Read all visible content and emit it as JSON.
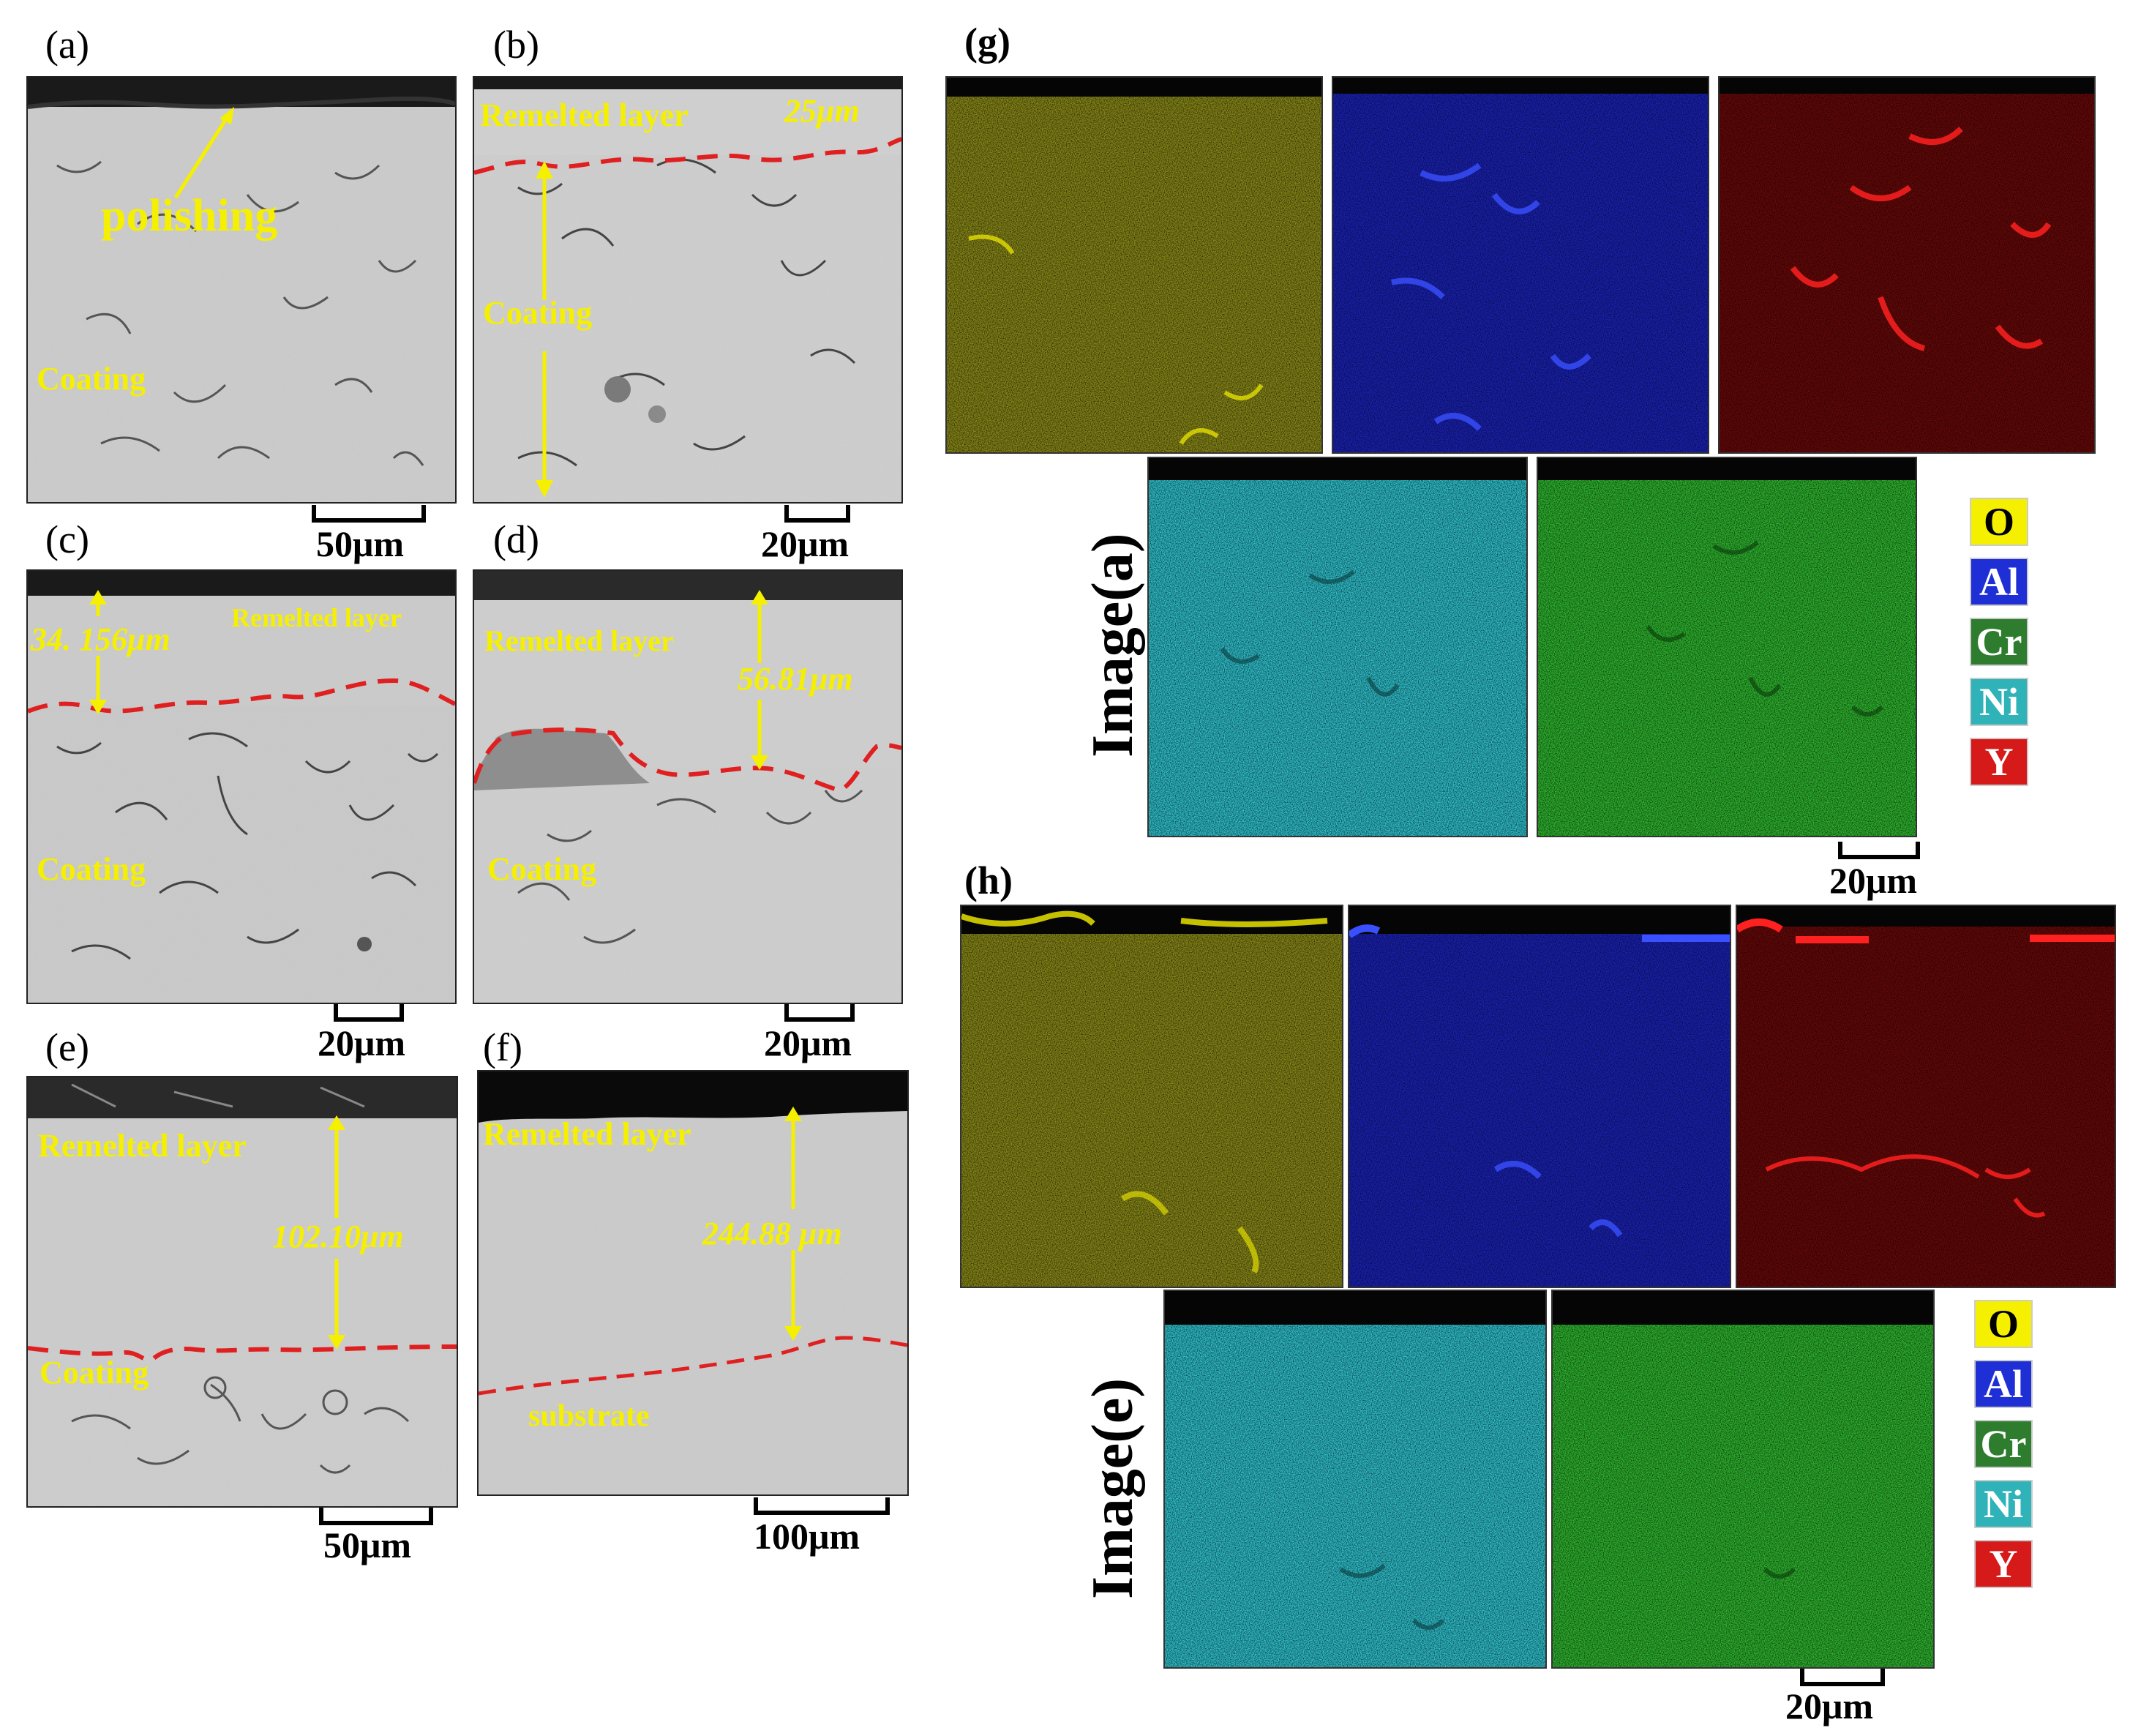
{
  "panels": {
    "a": {
      "label": "(a)",
      "polishing": "polishing",
      "coating": "Coating",
      "scale": "50μm"
    },
    "b": {
      "label": "(b)",
      "remelted": "Remelted layer",
      "thickness": "25μm",
      "coating": "Coating",
      "scale": "20μm"
    },
    "c": {
      "label": "(c)",
      "remelted": "Remelted layer",
      "thickness": "34. 156μm",
      "coating": "Coating",
      "scale": "20μm"
    },
    "d": {
      "label": "(d)",
      "remelted": "Remelted layer",
      "thickness": "56.81μm",
      "coating": "Coating",
      "scale": "20μm"
    },
    "e": {
      "label": "(e)",
      "remelted": "Remelted layer",
      "thickness": "102.10μm",
      "coating": "Coating",
      "scale": "50μm"
    },
    "f": {
      "label": "(f)",
      "remelted": "Remelted layer",
      "thickness": "244.88 μm",
      "substrate": "substrate",
      "scale": "100μm"
    }
  },
  "maps": {
    "g": {
      "label": "(g)",
      "image_label": "Image(a)",
      "scale": "20μm"
    },
    "h": {
      "label": "(h)",
      "image_label": "Image(e)",
      "scale": "20μm"
    }
  },
  "legend": [
    {
      "element": "O",
      "color": "#f5f000",
      "text_color": "#000000"
    },
    {
      "element": "Al",
      "color": "#1f2fd6",
      "text_color": "#ffffff"
    },
    {
      "element": "Cr",
      "color": "#2e7d2e",
      "text_color": "#ffffff"
    },
    {
      "element": "Ni",
      "color": "#2fb3b8",
      "text_color": "#ffffff"
    },
    {
      "element": "Y",
      "color": "#d61a1a",
      "text_color": "#ffffff"
    }
  ],
  "colors": {
    "sem_background": "#c7c7c7",
    "annotation_yellow": "#f5f000",
    "boundary_red": "#e02020",
    "map_O": "#8a8a18",
    "map_Al": "#1a22b8",
    "map_Y": "#6a0808",
    "map_Ni": "#2fc4d0",
    "map_Cr": "#2eb82e"
  }
}
